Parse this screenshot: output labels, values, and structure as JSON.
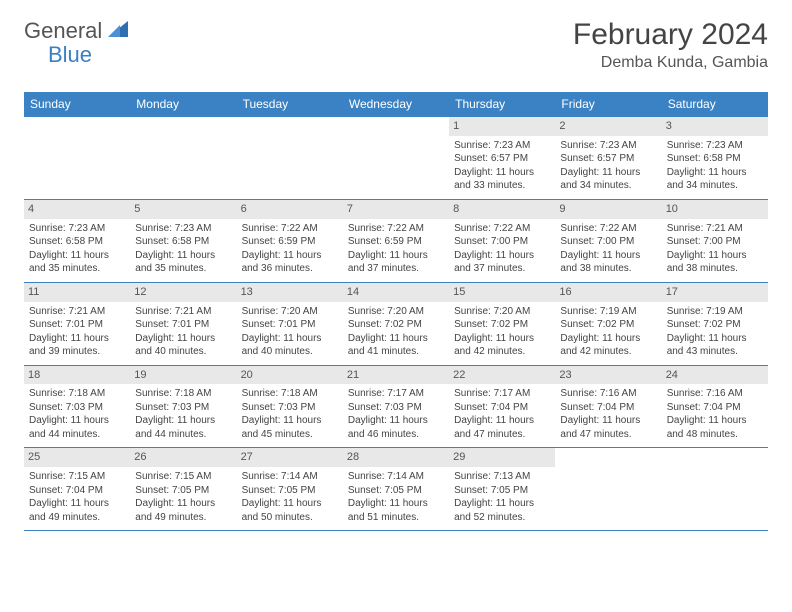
{
  "brand": {
    "part1": "General",
    "part2": "Blue"
  },
  "title": "February 2024",
  "location": "Demba Kunda, Gambia",
  "colors": {
    "header_bg": "#3b82c4",
    "header_text": "#ffffff",
    "daynum_bg": "#e8e8e8",
    "border": "#3b82c4",
    "brand_gray": "#555555",
    "brand_blue": "#3b7fc4"
  },
  "weekdays": [
    "Sunday",
    "Monday",
    "Tuesday",
    "Wednesday",
    "Thursday",
    "Friday",
    "Saturday"
  ],
  "weeks": [
    [
      null,
      null,
      null,
      null,
      {
        "d": "1",
        "sr": "7:23 AM",
        "ss": "6:57 PM",
        "dl": "11 hours and 33 minutes."
      },
      {
        "d": "2",
        "sr": "7:23 AM",
        "ss": "6:57 PM",
        "dl": "11 hours and 34 minutes."
      },
      {
        "d": "3",
        "sr": "7:23 AM",
        "ss": "6:58 PM",
        "dl": "11 hours and 34 minutes."
      }
    ],
    [
      {
        "d": "4",
        "sr": "7:23 AM",
        "ss": "6:58 PM",
        "dl": "11 hours and 35 minutes."
      },
      {
        "d": "5",
        "sr": "7:23 AM",
        "ss": "6:58 PM",
        "dl": "11 hours and 35 minutes."
      },
      {
        "d": "6",
        "sr": "7:22 AM",
        "ss": "6:59 PM",
        "dl": "11 hours and 36 minutes."
      },
      {
        "d": "7",
        "sr": "7:22 AM",
        "ss": "6:59 PM",
        "dl": "11 hours and 37 minutes."
      },
      {
        "d": "8",
        "sr": "7:22 AM",
        "ss": "7:00 PM",
        "dl": "11 hours and 37 minutes."
      },
      {
        "d": "9",
        "sr": "7:22 AM",
        "ss": "7:00 PM",
        "dl": "11 hours and 38 minutes."
      },
      {
        "d": "10",
        "sr": "7:21 AM",
        "ss": "7:00 PM",
        "dl": "11 hours and 38 minutes."
      }
    ],
    [
      {
        "d": "11",
        "sr": "7:21 AM",
        "ss": "7:01 PM",
        "dl": "11 hours and 39 minutes."
      },
      {
        "d": "12",
        "sr": "7:21 AM",
        "ss": "7:01 PM",
        "dl": "11 hours and 40 minutes."
      },
      {
        "d": "13",
        "sr": "7:20 AM",
        "ss": "7:01 PM",
        "dl": "11 hours and 40 minutes."
      },
      {
        "d": "14",
        "sr": "7:20 AM",
        "ss": "7:02 PM",
        "dl": "11 hours and 41 minutes."
      },
      {
        "d": "15",
        "sr": "7:20 AM",
        "ss": "7:02 PM",
        "dl": "11 hours and 42 minutes."
      },
      {
        "d": "16",
        "sr": "7:19 AM",
        "ss": "7:02 PM",
        "dl": "11 hours and 42 minutes."
      },
      {
        "d": "17",
        "sr": "7:19 AM",
        "ss": "7:02 PM",
        "dl": "11 hours and 43 minutes."
      }
    ],
    [
      {
        "d": "18",
        "sr": "7:18 AM",
        "ss": "7:03 PM",
        "dl": "11 hours and 44 minutes."
      },
      {
        "d": "19",
        "sr": "7:18 AM",
        "ss": "7:03 PM",
        "dl": "11 hours and 44 minutes."
      },
      {
        "d": "20",
        "sr": "7:18 AM",
        "ss": "7:03 PM",
        "dl": "11 hours and 45 minutes."
      },
      {
        "d": "21",
        "sr": "7:17 AM",
        "ss": "7:03 PM",
        "dl": "11 hours and 46 minutes."
      },
      {
        "d": "22",
        "sr": "7:17 AM",
        "ss": "7:04 PM",
        "dl": "11 hours and 47 minutes."
      },
      {
        "d": "23",
        "sr": "7:16 AM",
        "ss": "7:04 PM",
        "dl": "11 hours and 47 minutes."
      },
      {
        "d": "24",
        "sr": "7:16 AM",
        "ss": "7:04 PM",
        "dl": "11 hours and 48 minutes."
      }
    ],
    [
      {
        "d": "25",
        "sr": "7:15 AM",
        "ss": "7:04 PM",
        "dl": "11 hours and 49 minutes."
      },
      {
        "d": "26",
        "sr": "7:15 AM",
        "ss": "7:05 PM",
        "dl": "11 hours and 49 minutes."
      },
      {
        "d": "27",
        "sr": "7:14 AM",
        "ss": "7:05 PM",
        "dl": "11 hours and 50 minutes."
      },
      {
        "d": "28",
        "sr": "7:14 AM",
        "ss": "7:05 PM",
        "dl": "11 hours and 51 minutes."
      },
      {
        "d": "29",
        "sr": "7:13 AM",
        "ss": "7:05 PM",
        "dl": "11 hours and 52 minutes."
      },
      null,
      null
    ]
  ],
  "labels": {
    "sunrise": "Sunrise: ",
    "sunset": "Sunset: ",
    "daylight": "Daylight: "
  }
}
